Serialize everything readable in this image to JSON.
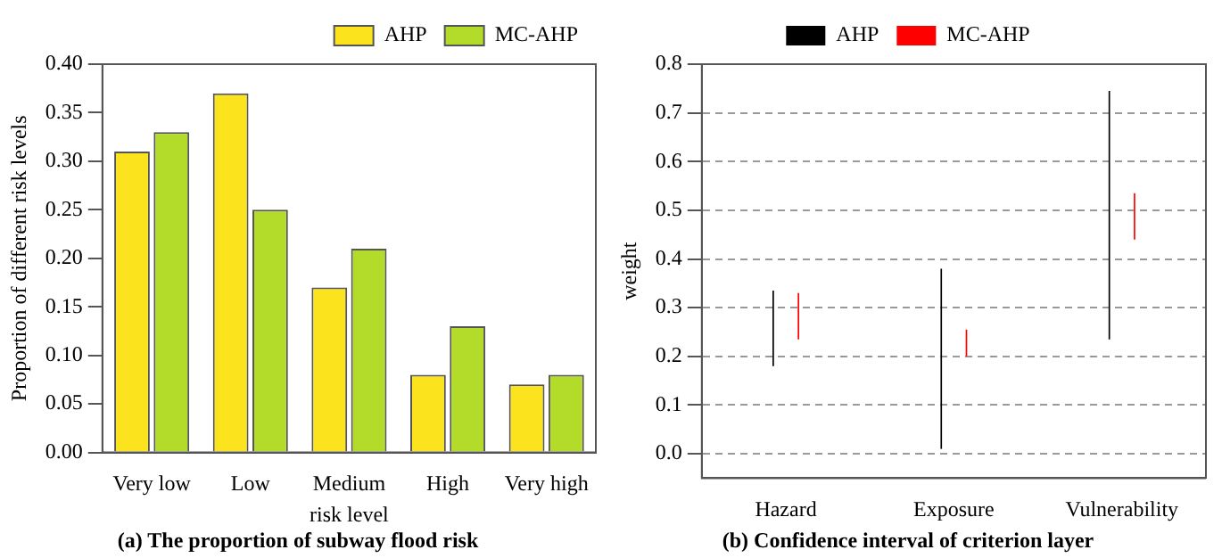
{
  "chart_data": [
    {
      "type": "bar",
      "title": "(a) The proportion of subway flood risk",
      "xlabel": "risk level",
      "ylabel": "Proportion of different risk levels",
      "categories": [
        "Very low",
        "Low",
        "Medium",
        "High",
        "Very high"
      ],
      "series": [
        {
          "name": "AHP",
          "color": "#fbe41e",
          "values": [
            0.31,
            0.37,
            0.17,
            0.08,
            0.07
          ]
        },
        {
          "name": "MC-AHP",
          "color": "#b3dc2a",
          "values": [
            0.33,
            0.25,
            0.21,
            0.13,
            0.08
          ]
        }
      ],
      "ylim": [
        0,
        0.4
      ],
      "yticks": [
        {
          "value": 0,
          "label": "0.00"
        },
        {
          "value": 0.05,
          "label": "0.05"
        },
        {
          "value": 0.1,
          "label": "0.10"
        },
        {
          "value": 0.15,
          "label": "0.15"
        },
        {
          "value": 0.2,
          "label": "0.20"
        },
        {
          "value": 0.25,
          "label": "0.25"
        },
        {
          "value": 0.3,
          "label": "0.30"
        },
        {
          "value": 0.35,
          "label": "0.35"
        },
        {
          "value": 0.4,
          "label": "0.40"
        }
      ],
      "grid": false,
      "legend": "top right"
    },
    {
      "type": "bar",
      "title": "(b) Confidence interval of criterion layer",
      "ylabel": "weight",
      "categories": [
        "Hazard",
        "Exposure",
        "Vulnerability"
      ],
      "series": [
        {
          "name": "AHP",
          "color": "#000000",
          "base": [
            0.18,
            0.01,
            0.235
          ],
          "values": [
            0.155,
            0.37,
            0.51
          ]
        },
        {
          "name": "MC-AHP",
          "color": "#ff0000",
          "base": [
            0.235,
            0.2,
            0.44
          ],
          "values": [
            0.095,
            0.055,
            0.095
          ]
        }
      ],
      "ylim": [
        -0.05,
        0.8
      ],
      "yticks": [
        {
          "value": 0,
          "label": "0.0"
        },
        {
          "value": 0.1,
          "label": "0.1"
        },
        {
          "value": 0.2,
          "label": "0.2"
        },
        {
          "value": 0.3,
          "label": "0.3"
        },
        {
          "value": 0.4,
          "label": "0.4"
        },
        {
          "value": 0.5,
          "label": "0.5"
        },
        {
          "value": 0.6,
          "label": "0.6"
        },
        {
          "value": 0.7,
          "label": "0.7"
        },
        {
          "value": 0.8,
          "label": "0.8"
        }
      ],
      "grid": "y",
      "legend": "top"
    }
  ]
}
